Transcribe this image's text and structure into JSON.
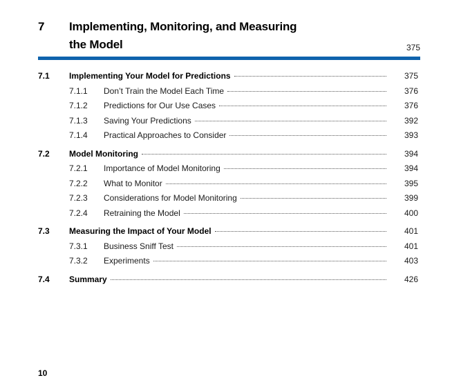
{
  "header": {
    "chapter_number": "7",
    "title": "Implementing, Monitoring, and Measuring\nthe Model",
    "page": "375",
    "rule_color": "#0f63ad"
  },
  "toc": {
    "entries": [
      {
        "num": "7.1",
        "title": "Implementing Your Model for Predictions",
        "page": "375",
        "level": "section"
      },
      {
        "num": "7.1.1",
        "title": "Don’t Train the Model Each Time",
        "page": "376",
        "level": "sub"
      },
      {
        "num": "7.1.2",
        "title": "Predictions for Our Use Cases",
        "page": "376",
        "level": "sub"
      },
      {
        "num": "7.1.3",
        "title": "Saving Your Predictions",
        "page": "392",
        "level": "sub"
      },
      {
        "num": "7.1.4",
        "title": "Practical Approaches to Consider",
        "page": "393",
        "level": "sub"
      },
      {
        "num": "7.2",
        "title": "Model Monitoring",
        "page": "394",
        "level": "section"
      },
      {
        "num": "7.2.1",
        "title": "Importance of Model Monitoring",
        "page": "394",
        "level": "sub"
      },
      {
        "num": "7.2.2",
        "title": "What to Monitor",
        "page": "395",
        "level": "sub"
      },
      {
        "num": "7.2.3",
        "title": "Considerations for Model Monitoring",
        "page": "399",
        "level": "sub"
      },
      {
        "num": "7.2.4",
        "title": "Retraining the Model",
        "page": "400",
        "level": "sub"
      },
      {
        "num": "7.3",
        "title": "Measuring the Impact of Your Model",
        "page": "401",
        "level": "section"
      },
      {
        "num": "7.3.1",
        "title": "Business Sniff Test",
        "page": "401",
        "level": "sub"
      },
      {
        "num": "7.3.2",
        "title": "Experiments",
        "page": "403",
        "level": "sub"
      },
      {
        "num": "7.4",
        "title": "Summary",
        "page": "426",
        "level": "section"
      }
    ]
  },
  "footer": {
    "page_number": "10"
  }
}
